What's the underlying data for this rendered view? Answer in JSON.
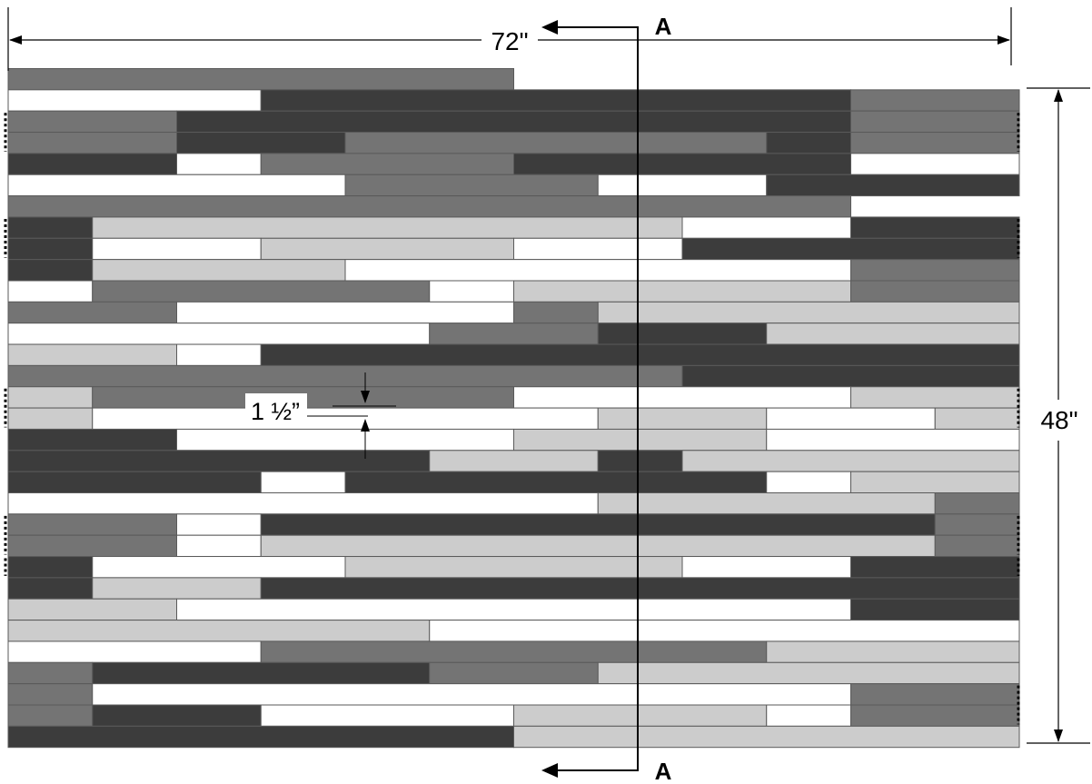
{
  "labels": {
    "width_dimension": "72\"",
    "height_dimension": "48\"",
    "board_width_dimension": "1 ½”",
    "section_marker_top": "A",
    "section_marker_bottom": "A"
  },
  "colors": {
    "D": "#3c3c3c",
    "M": "#747474",
    "L": "#cccccc",
    "W": "#ffffff",
    "seam": "#5a5a5a",
    "line": "#000000"
  },
  "board_rows": [
    [
      [
        "M",
        0,
        6
      ]
    ],
    [
      [
        "W",
        0,
        3
      ],
      [
        "D",
        3,
        10
      ],
      [
        "M",
        10,
        12
      ]
    ],
    [
      [
        "M",
        0,
        2
      ],
      [
        "D",
        2,
        10
      ],
      [
        "M",
        10,
        12
      ]
    ],
    [
      [
        "M",
        0,
        2
      ],
      [
        "D",
        2,
        4
      ],
      [
        "M",
        4,
        9
      ],
      [
        "D",
        9,
        10
      ],
      [
        "M",
        10,
        12
      ]
    ],
    [
      [
        "D",
        0,
        2
      ],
      [
        "W",
        2,
        3
      ],
      [
        "M",
        3,
        6
      ],
      [
        "D",
        6,
        10
      ],
      [
        "W",
        10,
        12
      ]
    ],
    [
      [
        "W",
        0,
        4
      ],
      [
        "M",
        4,
        7
      ],
      [
        "W",
        7,
        9
      ],
      [
        "D",
        9,
        12
      ]
    ],
    [
      [
        "M",
        0,
        10
      ]
    ],
    [
      [
        "D",
        0,
        1
      ],
      [
        "L",
        1,
        8
      ],
      [
        "W",
        8,
        10
      ],
      [
        "D",
        10,
        12
      ]
    ],
    [
      [
        "D",
        0,
        1
      ],
      [
        "W",
        1,
        3
      ],
      [
        "L",
        3,
        6
      ],
      [
        "W",
        6,
        8
      ],
      [
        "D",
        8,
        12
      ]
    ],
    [
      [
        "D",
        0,
        1
      ],
      [
        "L",
        1,
        4
      ],
      [
        "W",
        4,
        10
      ],
      [
        "M",
        10,
        12
      ]
    ],
    [
      [
        "W",
        0,
        1
      ],
      [
        "M",
        1,
        5
      ],
      [
        "W",
        5,
        6
      ],
      [
        "L",
        6,
        10
      ],
      [
        "M",
        10,
        12
      ]
    ],
    [
      [
        "M",
        0,
        2
      ],
      [
        "W",
        2,
        6
      ],
      [
        "M",
        6,
        7
      ],
      [
        "L",
        7,
        12
      ]
    ],
    [
      [
        "W",
        0,
        5
      ],
      [
        "M",
        5,
        7
      ],
      [
        "D",
        7,
        9
      ],
      [
        "L",
        9,
        12
      ]
    ],
    [
      [
        "L",
        0,
        2
      ],
      [
        "W",
        2,
        3
      ],
      [
        "D",
        3,
        12
      ]
    ],
    [
      [
        "M",
        0,
        8
      ],
      [
        "D",
        8,
        12
      ]
    ],
    [
      [
        "L",
        0,
        1
      ],
      [
        "M",
        1,
        6
      ],
      [
        "W",
        6,
        10
      ],
      [
        "L",
        10,
        12
      ]
    ],
    [
      [
        "L",
        0,
        1
      ],
      [
        "W",
        1,
        7
      ],
      [
        "L",
        7,
        9
      ],
      [
        "W",
        9,
        11
      ],
      [
        "L",
        11,
        12
      ]
    ],
    [
      [
        "D",
        0,
        2
      ],
      [
        "W",
        2,
        6
      ],
      [
        "L",
        6,
        9
      ],
      [
        "W",
        9,
        12
      ]
    ],
    [
      [
        "D",
        0,
        5
      ],
      [
        "L",
        5,
        7
      ],
      [
        "D",
        7,
        8
      ],
      [
        "L",
        8,
        12
      ]
    ],
    [
      [
        "D",
        0,
        3
      ],
      [
        "W",
        3,
        4
      ],
      [
        "D",
        4,
        9
      ],
      [
        "W",
        9,
        10
      ],
      [
        "L",
        10,
        12
      ]
    ],
    [
      [
        "W",
        0,
        7
      ],
      [
        "L",
        7,
        11
      ],
      [
        "M",
        11,
        12
      ]
    ],
    [
      [
        "M",
        0,
        2
      ],
      [
        "W",
        2,
        3
      ],
      [
        "D",
        3,
        11
      ],
      [
        "M",
        11,
        12
      ]
    ],
    [
      [
        "M",
        0,
        2
      ],
      [
        "W",
        2,
        3
      ],
      [
        "L",
        3,
        11
      ],
      [
        "M",
        11,
        12
      ]
    ],
    [
      [
        "D",
        0,
        1
      ],
      [
        "W",
        1,
        4
      ],
      [
        "L",
        4,
        8
      ],
      [
        "W",
        8,
        10
      ],
      [
        "D",
        10,
        12
      ]
    ],
    [
      [
        "D",
        0,
        1
      ],
      [
        "L",
        1,
        3
      ],
      [
        "D",
        3,
        12
      ]
    ],
    [
      [
        "L",
        0,
        2
      ],
      [
        "W",
        2,
        10
      ],
      [
        "D",
        10,
        12
      ]
    ],
    [
      [
        "L",
        0,
        5
      ],
      [
        "W",
        5,
        12
      ]
    ],
    [
      [
        "W",
        0,
        3
      ],
      [
        "M",
        3,
        9
      ],
      [
        "L",
        9,
        12
      ]
    ],
    [
      [
        "M",
        0,
        1
      ],
      [
        "D",
        1,
        5
      ],
      [
        "M",
        5,
        7
      ],
      [
        "L",
        7,
        12
      ]
    ],
    [
      [
        "M",
        0,
        1
      ],
      [
        "W",
        1,
        10
      ],
      [
        "M",
        10,
        12
      ]
    ],
    [
      [
        "M",
        0,
        1
      ],
      [
        "D",
        1,
        3
      ],
      [
        "W",
        3,
        6
      ],
      [
        "L",
        6,
        9
      ],
      [
        "W",
        9,
        10
      ],
      [
        "M",
        10,
        12
      ]
    ],
    [
      [
        "D",
        0,
        6
      ],
      [
        "L",
        6,
        12
      ]
    ]
  ],
  "edge_marks_left": [
    [
      2,
      4
    ],
    [
      7,
      9
    ],
    [
      15,
      17
    ],
    [
      21,
      23
    ],
    [
      23,
      24
    ]
  ],
  "edge_marks_right": [
    [
      2,
      4
    ],
    [
      7,
      9
    ],
    [
      15,
      17
    ],
    [
      21,
      23
    ],
    [
      23,
      24
    ],
    [
      29,
      31
    ]
  ]
}
